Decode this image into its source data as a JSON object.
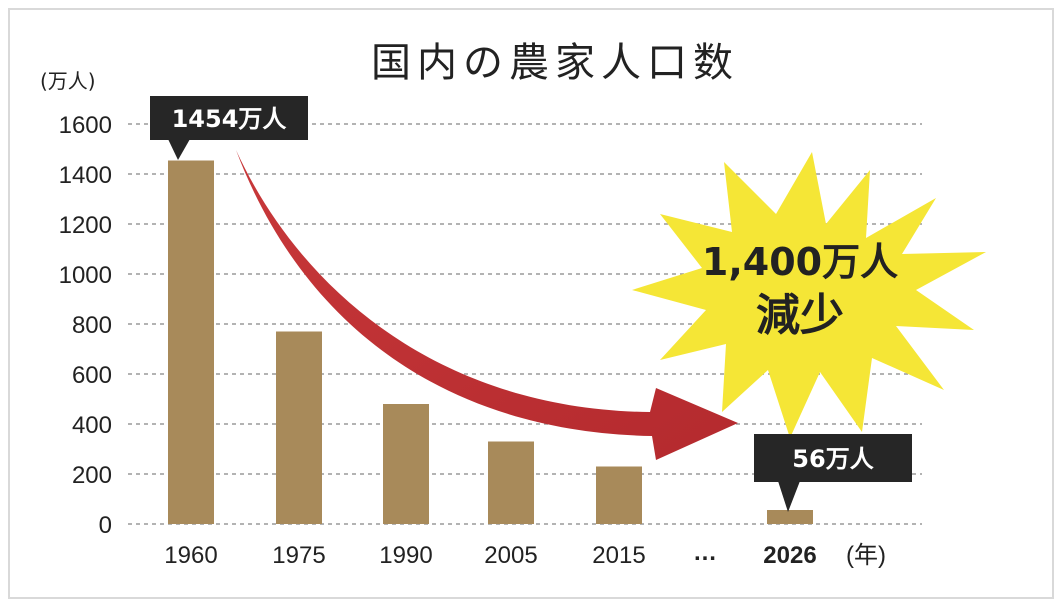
{
  "chart_data": {
    "type": "bar",
    "title": "国内の農家人口数",
    "yunit": "(万人)",
    "xunit": "(年)",
    "categories": [
      "1960",
      "1975",
      "1990",
      "2005",
      "2015",
      "…",
      "2026"
    ],
    "values": [
      1454,
      770,
      480,
      330,
      230,
      null,
      56
    ],
    "ylim": [
      0,
      1600
    ],
    "yticks": [
      0,
      200,
      400,
      600,
      800,
      1000,
      1200,
      1400,
      1600
    ],
    "grid": true,
    "callouts": [
      {
        "category": "1960",
        "text": "1454万人"
      },
      {
        "category": "2026",
        "text": "56万人"
      }
    ],
    "annotation": {
      "line1": "1,400万人",
      "line2": "減少"
    },
    "colors": {
      "bar": "#a88a5a",
      "callout_bg": "#262626",
      "arrow": "#c8383a",
      "burst": "#f5e636",
      "grid": "#9a9a9a"
    }
  }
}
